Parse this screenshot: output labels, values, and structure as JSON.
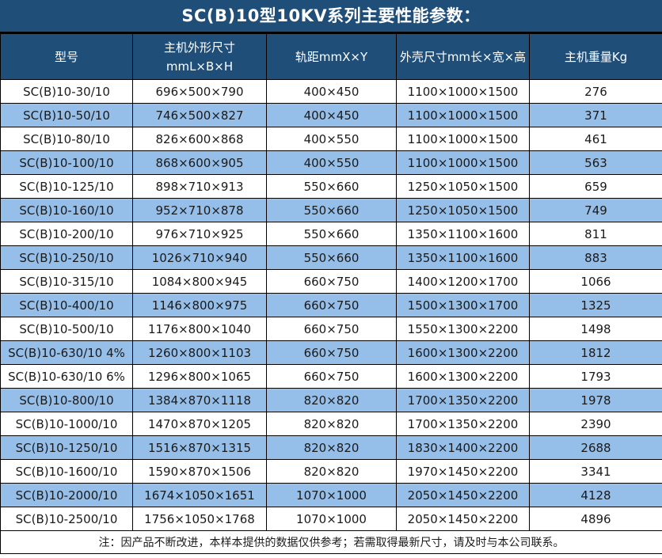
{
  "title": "SC(B)10型10KV系列主要性能参数：",
  "note": "注：因产品不断改进，本样本提供的数据仅供参考；若需取得最新尺寸，请及时与本公司联系。",
  "colors": {
    "header_bg": "#1F4E79",
    "row_alt_bg": "#95BEE8",
    "row_bg": "#FFFFFF",
    "border": "#000000",
    "header_text": "#FFFFFF",
    "cell_text": "#1A1A1A"
  },
  "table": {
    "headers": [
      "型号",
      "主机外形尺寸\nmmL×B×H",
      "轨距mmX×Y",
      "外壳尺寸mm长×宽×高",
      "主机重量Kg"
    ],
    "rows": [
      [
        "SC(B)10-30/10",
        "696×500×790",
        "400×450",
        "1100×1000×1500",
        "276"
      ],
      [
        "SC(B)10-50/10",
        "746×500×827",
        "400×450",
        "1100×1000×1500",
        "371"
      ],
      [
        "SC(B)10-80/10",
        "826×600×868",
        "400×550",
        "1100×1000×1500",
        "461"
      ],
      [
        "SC(B)10-100/10",
        "868×600×905",
        "400×550",
        "1100×1000×1500",
        "563"
      ],
      [
        "SC(B)10-125/10",
        "898×710×913",
        "550×660",
        "1250×1050×1500",
        "659"
      ],
      [
        "SC(B)10-160/10",
        "952×710×878",
        "550×660",
        "1250×1050×1500",
        "749"
      ],
      [
        "SC(B)10-200/10",
        "976×710×925",
        "550×660",
        "1350×1100×1600",
        "811"
      ],
      [
        "SC(B)10-250/10",
        "1026×710×940",
        "550×660",
        "1350×1100×1600",
        "883"
      ],
      [
        "SC(B)10-315/10",
        "1084×800×945",
        "660×750",
        "1400×1200×1700",
        "1066"
      ],
      [
        "SC(B)10-400/10",
        "1146×800×975",
        "660×750",
        "1500×1300×1700",
        "1325"
      ],
      [
        "SC(B)10-500/10",
        "1176×800×1040",
        "660×750",
        "1550×1300×2200",
        "1498"
      ],
      [
        "SC(B)10-630/10 4%",
        "1260×800×1103",
        "660×750",
        "1600×1300×2200",
        "1812"
      ],
      [
        "SC(B)10-630/10 6%",
        "1296×800×1065",
        "660×750",
        "1600×1300×2200",
        "1793"
      ],
      [
        "SC(B)10-800/10",
        "1384×870×1118",
        "820×820",
        "1700×1350×2200",
        "1978"
      ],
      [
        "SC(B)10-1000/10",
        "1470×870×1205",
        "820×820",
        "1700×1350×2200",
        "2390"
      ],
      [
        "SC(B)10-1250/10",
        "1516×870×1315",
        "820×820",
        "1830×1400×2200",
        "2688"
      ],
      [
        "SC(B)10-1600/10",
        "1590×870×1506",
        "820×820",
        "1970×1450×2200",
        "3341"
      ],
      [
        "SC(B)10-2000/10",
        "1674×1050×1651",
        "1070×1000",
        "2050×1450×2200",
        "4128"
      ],
      [
        "SC(B)10-2500/10",
        "1756×1050×1768",
        "1070×1000",
        "2050×1450×2200",
        "4896"
      ]
    ]
  }
}
